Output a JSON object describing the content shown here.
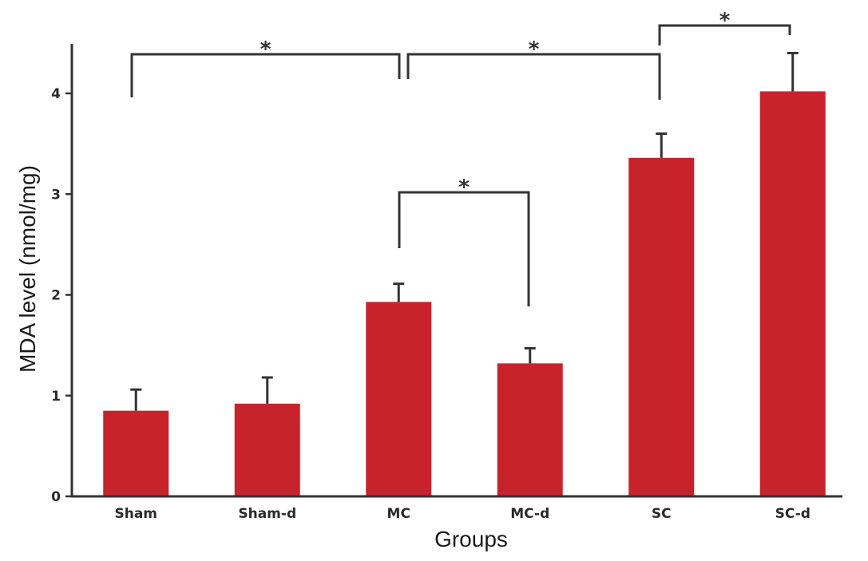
{
  "chart_data": {
    "type": "bar",
    "categories": [
      "Sham",
      "Sham-d",
      "MC",
      "MC-d",
      "SC",
      "SC-d"
    ],
    "values": [
      0.85,
      0.92,
      1.93,
      1.32,
      3.36,
      4.02
    ],
    "errors": [
      0.21,
      0.26,
      0.18,
      0.15,
      0.24,
      0.38
    ],
    "xlabel": "Groups",
    "ylabel": "MDA level (nmol/mg)",
    "ylim": [
      0,
      4.5
    ],
    "yticks": [
      "0",
      "1",
      "2",
      "3",
      "4"
    ],
    "grid": false,
    "colors": {
      "bar": "#c8232b",
      "axis": "#333333"
    },
    "significance": [
      {
        "from": "Sham",
        "to": "MC",
        "label": "*"
      },
      {
        "from": "MC",
        "to": "SC",
        "label": "*"
      },
      {
        "from": "SC",
        "to": "SC-d",
        "label": "*"
      },
      {
        "from": "MC",
        "to": "MC-d",
        "label": "*"
      }
    ]
  }
}
